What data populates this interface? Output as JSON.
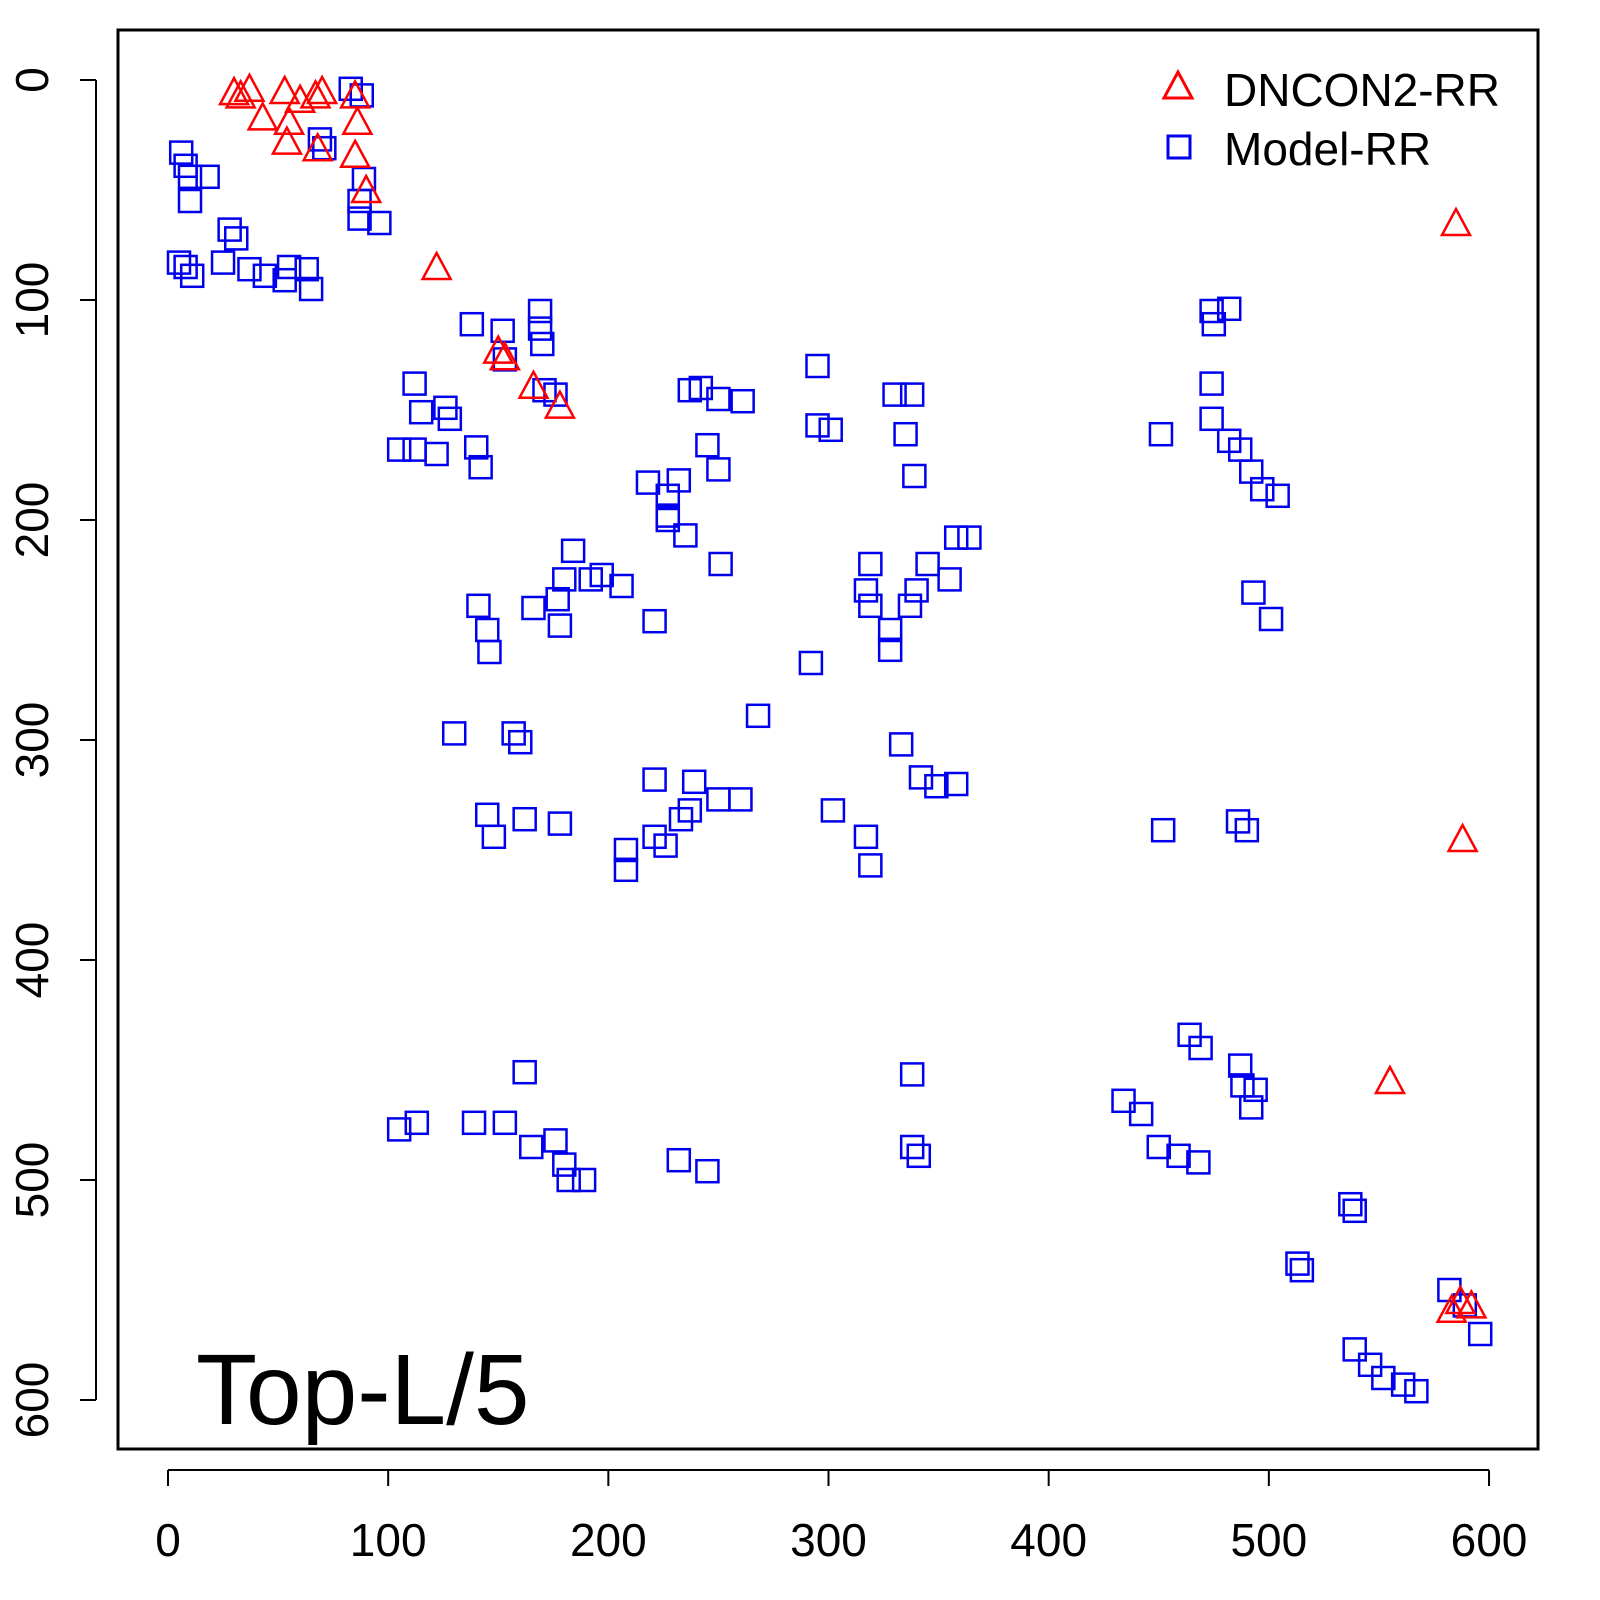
{
  "chart_data": {
    "type": "scatter",
    "title": "",
    "annotation": "Top-L/5",
    "xlabel": "",
    "ylabel": "",
    "xlim": [
      -23,
      622
    ],
    "ylim": [
      623,
      -23
    ],
    "y_inverted": true,
    "grid": false,
    "legend_position": "top-right",
    "x_ticks": [
      "0",
      "100",
      "200",
      "300",
      "400",
      "500",
      "600"
    ],
    "y_ticks": [
      "0",
      "100",
      "200",
      "300",
      "400",
      "500",
      "600"
    ],
    "series": [
      {
        "name": "DNCON2-RR",
        "marker": "triangle",
        "color": "#ff0000",
        "points": [
          [
            30,
            5.5
          ],
          [
            37,
            4
          ],
          [
            33,
            7
          ],
          [
            43,
            17
          ],
          [
            53,
            5
          ],
          [
            55,
            19
          ],
          [
            54,
            28
          ],
          [
            60,
            9
          ],
          [
            67,
            7
          ],
          [
            70,
            5
          ],
          [
            68,
            31
          ],
          [
            85,
            7
          ],
          [
            86,
            19
          ],
          [
            85,
            34
          ],
          [
            90,
            50
          ],
          [
            122,
            85
          ],
          [
            150,
            123
          ],
          [
            153,
            126
          ],
          [
            166,
            139
          ],
          [
            178,
            148
          ],
          [
            585,
            65
          ],
          [
            588,
            345
          ],
          [
            555,
            455
          ],
          [
            587,
            555
          ],
          [
            592,
            557
          ],
          [
            583,
            559
          ]
        ]
      },
      {
        "name": "Model-RR",
        "marker": "square",
        "color": "#0000ee",
        "points": [
          [
            6,
            33
          ],
          [
            8,
            39
          ],
          [
            10,
            44
          ],
          [
            18,
            44
          ],
          [
            10,
            55
          ],
          [
            28,
            68
          ],
          [
            31,
            72
          ],
          [
            25,
            83
          ],
          [
            5,
            83
          ],
          [
            8,
            85
          ],
          [
            11,
            89
          ],
          [
            37,
            86
          ],
          [
            44,
            89
          ],
          [
            53,
            91
          ],
          [
            55,
            85
          ],
          [
            63,
            86
          ],
          [
            65,
            95
          ],
          [
            69,
            27
          ],
          [
            71,
            31
          ],
          [
            83,
            4
          ],
          [
            88,
            7
          ],
          [
            89,
            45
          ],
          [
            87,
            55
          ],
          [
            87,
            63
          ],
          [
            96,
            65
          ],
          [
            138,
            111
          ],
          [
            152,
            114
          ],
          [
            153,
            127
          ],
          [
            169,
            105
          ],
          [
            169,
            113
          ],
          [
            170,
            120
          ],
          [
            112,
            138
          ],
          [
            115,
            151
          ],
          [
            126,
            149
          ],
          [
            128,
            154
          ],
          [
            105,
            168
          ],
          [
            112,
            168
          ],
          [
            122,
            170
          ],
          [
            140,
            167
          ],
          [
            142,
            176
          ],
          [
            171,
            141
          ],
          [
            176,
            143
          ],
          [
            218,
            183
          ],
          [
            227,
            189
          ],
          [
            227,
            198
          ],
          [
            235,
            207
          ],
          [
            232,
            182
          ],
          [
            245,
            166
          ],
          [
            250,
            177
          ],
          [
            251,
            220
          ],
          [
            227,
            200
          ],
          [
            237,
            141
          ],
          [
            242,
            140
          ],
          [
            250,
            145
          ],
          [
            261,
            146
          ],
          [
            295,
            130
          ],
          [
            295,
            157
          ],
          [
            301,
            159
          ],
          [
            184,
            214
          ],
          [
            180,
            227
          ],
          [
            177,
            236
          ],
          [
            166,
            240
          ],
          [
            178,
            248
          ],
          [
            192,
            227
          ],
          [
            197,
            225
          ],
          [
            206,
            230
          ],
          [
            221,
            246
          ],
          [
            141,
            239
          ],
          [
            145,
            250
          ],
          [
            146,
            260
          ],
          [
            292,
            265
          ],
          [
            268,
            289
          ],
          [
            130,
            297
          ],
          [
            157,
            297
          ],
          [
            160,
            301
          ],
          [
            319,
            220
          ],
          [
            317,
            232
          ],
          [
            319,
            239
          ],
          [
            328,
            250
          ],
          [
            328,
            259
          ],
          [
            345,
            220
          ],
          [
            340,
            232
          ],
          [
            337,
            239
          ],
          [
            355,
            227
          ],
          [
            358,
            208
          ],
          [
            364,
            208
          ],
          [
            330,
            143
          ],
          [
            338,
            143
          ],
          [
            335,
            161
          ],
          [
            339,
            180
          ],
          [
            333,
            302
          ],
          [
            342,
            317
          ],
          [
            349,
            321
          ],
          [
            358,
            320
          ],
          [
            302,
            332
          ],
          [
            317,
            344
          ],
          [
            319,
            357
          ],
          [
            145,
            334
          ],
          [
            148,
            344
          ],
          [
            162,
            336
          ],
          [
            178,
            338
          ],
          [
            208,
            350
          ],
          [
            208,
            359
          ],
          [
            221,
            344
          ],
          [
            226,
            348
          ],
          [
            233,
            336
          ],
          [
            237,
            332
          ],
          [
            239,
            319
          ],
          [
            250,
            327
          ],
          [
            260,
            327
          ],
          [
            221,
            318
          ],
          [
            452,
            341
          ],
          [
            486,
            337
          ],
          [
            490,
            341
          ],
          [
            474,
            105
          ],
          [
            475,
            111
          ],
          [
            482,
            104
          ],
          [
            474,
            138
          ],
          [
            474,
            154
          ],
          [
            451,
            161
          ],
          [
            482,
            164
          ],
          [
            487,
            168
          ],
          [
            492,
            178
          ],
          [
            497,
            186
          ],
          [
            504,
            189
          ],
          [
            493,
            233
          ],
          [
            501,
            245
          ],
          [
            338,
            452
          ],
          [
            338,
            485
          ],
          [
            341,
            489
          ],
          [
            232,
            491
          ],
          [
            245,
            496
          ],
          [
            162,
            451
          ],
          [
            139,
            474
          ],
          [
            153,
            474
          ],
          [
            105,
            477
          ],
          [
            113,
            474
          ],
          [
            165,
            485
          ],
          [
            176,
            482
          ],
          [
            180,
            493
          ],
          [
            182,
            500
          ],
          [
            189,
            500
          ],
          [
            434,
            464
          ],
          [
            442,
            470
          ],
          [
            450,
            485
          ],
          [
            459,
            489
          ],
          [
            468,
            492
          ],
          [
            464,
            434
          ],
          [
            469,
            440
          ],
          [
            487,
            448
          ],
          [
            488,
            457
          ],
          [
            494,
            459
          ],
          [
            492,
            467
          ],
          [
            537,
            511
          ],
          [
            539,
            514
          ],
          [
            513,
            538
          ],
          [
            515,
            541
          ],
          [
            582,
            550
          ],
          [
            589,
            557
          ],
          [
            596,
            570
          ],
          [
            539,
            577
          ],
          [
            546,
            584
          ],
          [
            552,
            590
          ],
          [
            561,
            593
          ],
          [
            567,
            596
          ]
        ]
      }
    ]
  }
}
